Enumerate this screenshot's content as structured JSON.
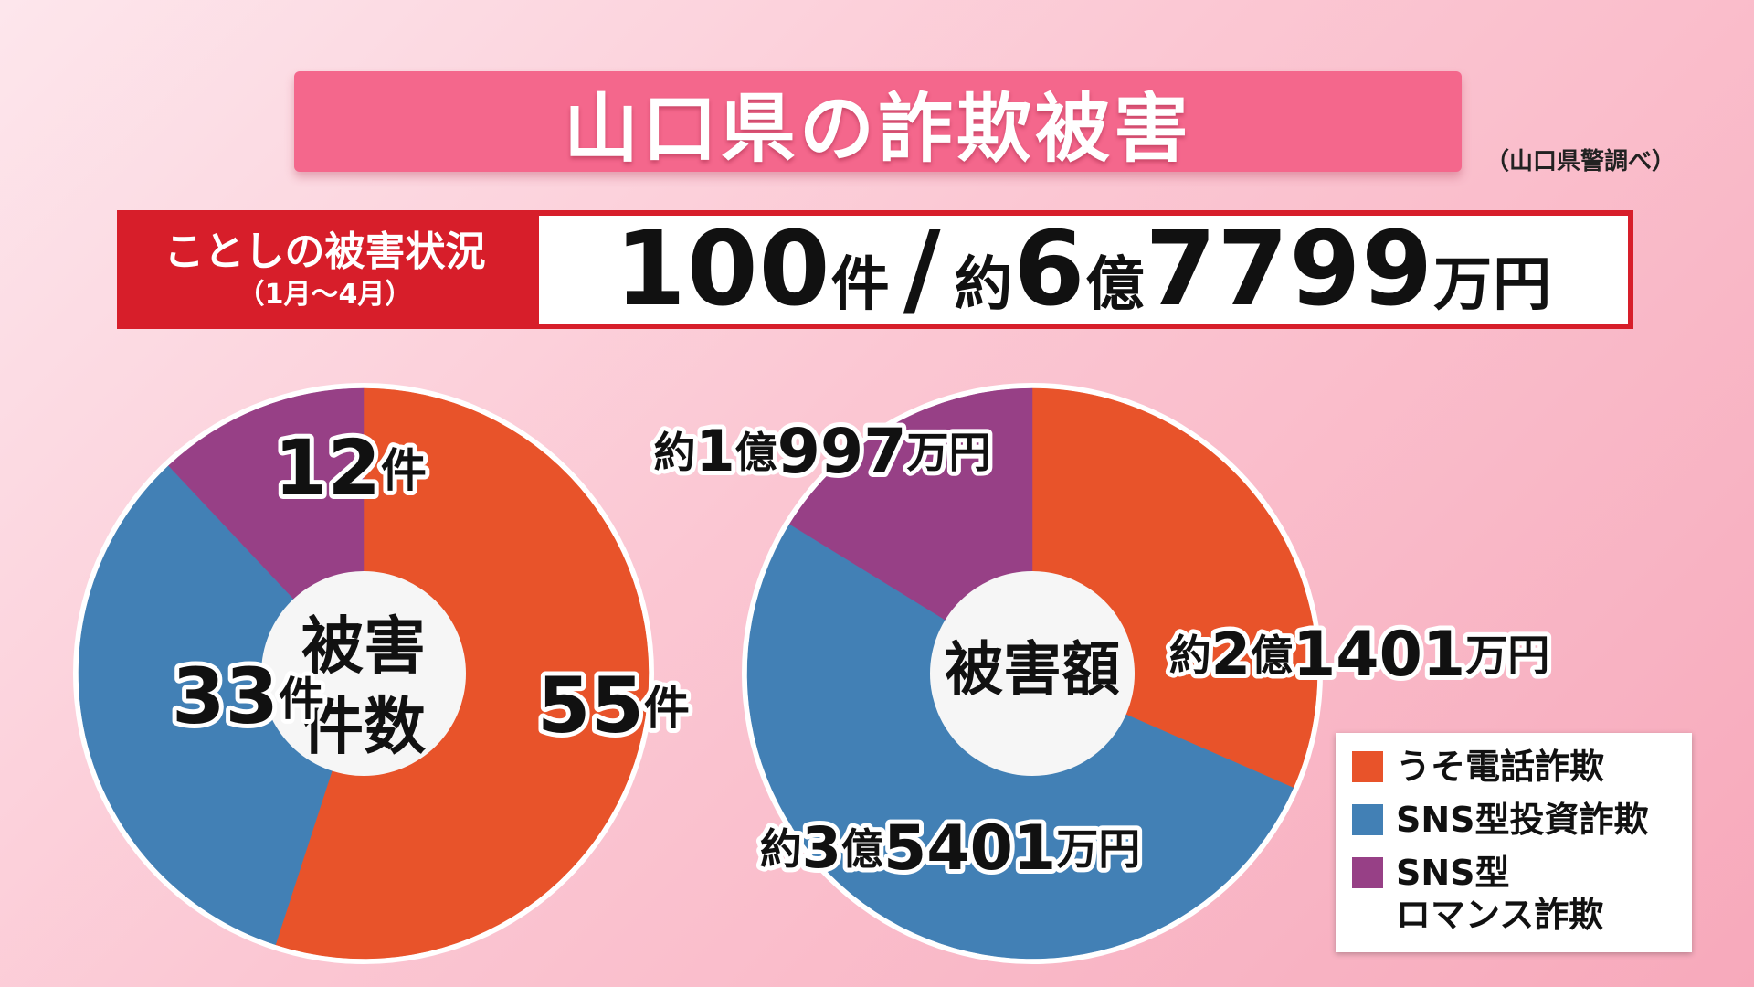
{
  "title": "山口県の詐欺被害",
  "source": "（山口県警調べ）",
  "summary": {
    "label": "ことしの被害状況",
    "period": "（1月〜4月）",
    "count_num": "100",
    "count_unit": "件",
    "separator": "/",
    "amount_prefix": "約",
    "amount_num1": "6",
    "amount_unit1": "億",
    "amount_num2": "7799",
    "amount_unit2": "万円"
  },
  "colors": {
    "uso_denwa": "#e8532a",
    "sns_investment": "#4280b5",
    "sns_romance": "#974086"
  },
  "legend": [
    {
      "label": "うそ電話詐欺",
      "color": "#e8532a"
    },
    {
      "label": "SNS型投資詐欺",
      "color": "#4280b5"
    },
    {
      "label": "SNS型\nロマンス詐欺",
      "color": "#974086"
    }
  ],
  "chart_data": [
    {
      "type": "pie",
      "center_label": [
        "被害",
        "件数"
      ],
      "categories": [
        "うそ電話詐欺",
        "SNS型投資詐欺",
        "SNS型ロマンス詐欺"
      ],
      "values": [
        55,
        33,
        12
      ],
      "value_labels": [
        {
          "num": "55",
          "unit": "件"
        },
        {
          "num": "33",
          "unit": "件"
        },
        {
          "num": "12",
          "unit": "件"
        }
      ]
    },
    {
      "type": "pie",
      "center_label": [
        "被害額"
      ],
      "categories": [
        "うそ電話詐欺",
        "SNS型投資詐欺",
        "SNS型ロマンス詐欺"
      ],
      "values": [
        21401,
        35401,
        10997
      ],
      "value_labels": [
        {
          "prefix": "約",
          "num1": "2",
          "unit1": "億",
          "num2": "1401",
          "unit2": "万円"
        },
        {
          "prefix": "約",
          "num1": "3",
          "unit1": "億",
          "num2": "5401",
          "unit2": "万円"
        },
        {
          "prefix": "約",
          "num1": "1",
          "unit1": "億",
          "num2": "997",
          "unit2": "万円"
        }
      ]
    }
  ]
}
